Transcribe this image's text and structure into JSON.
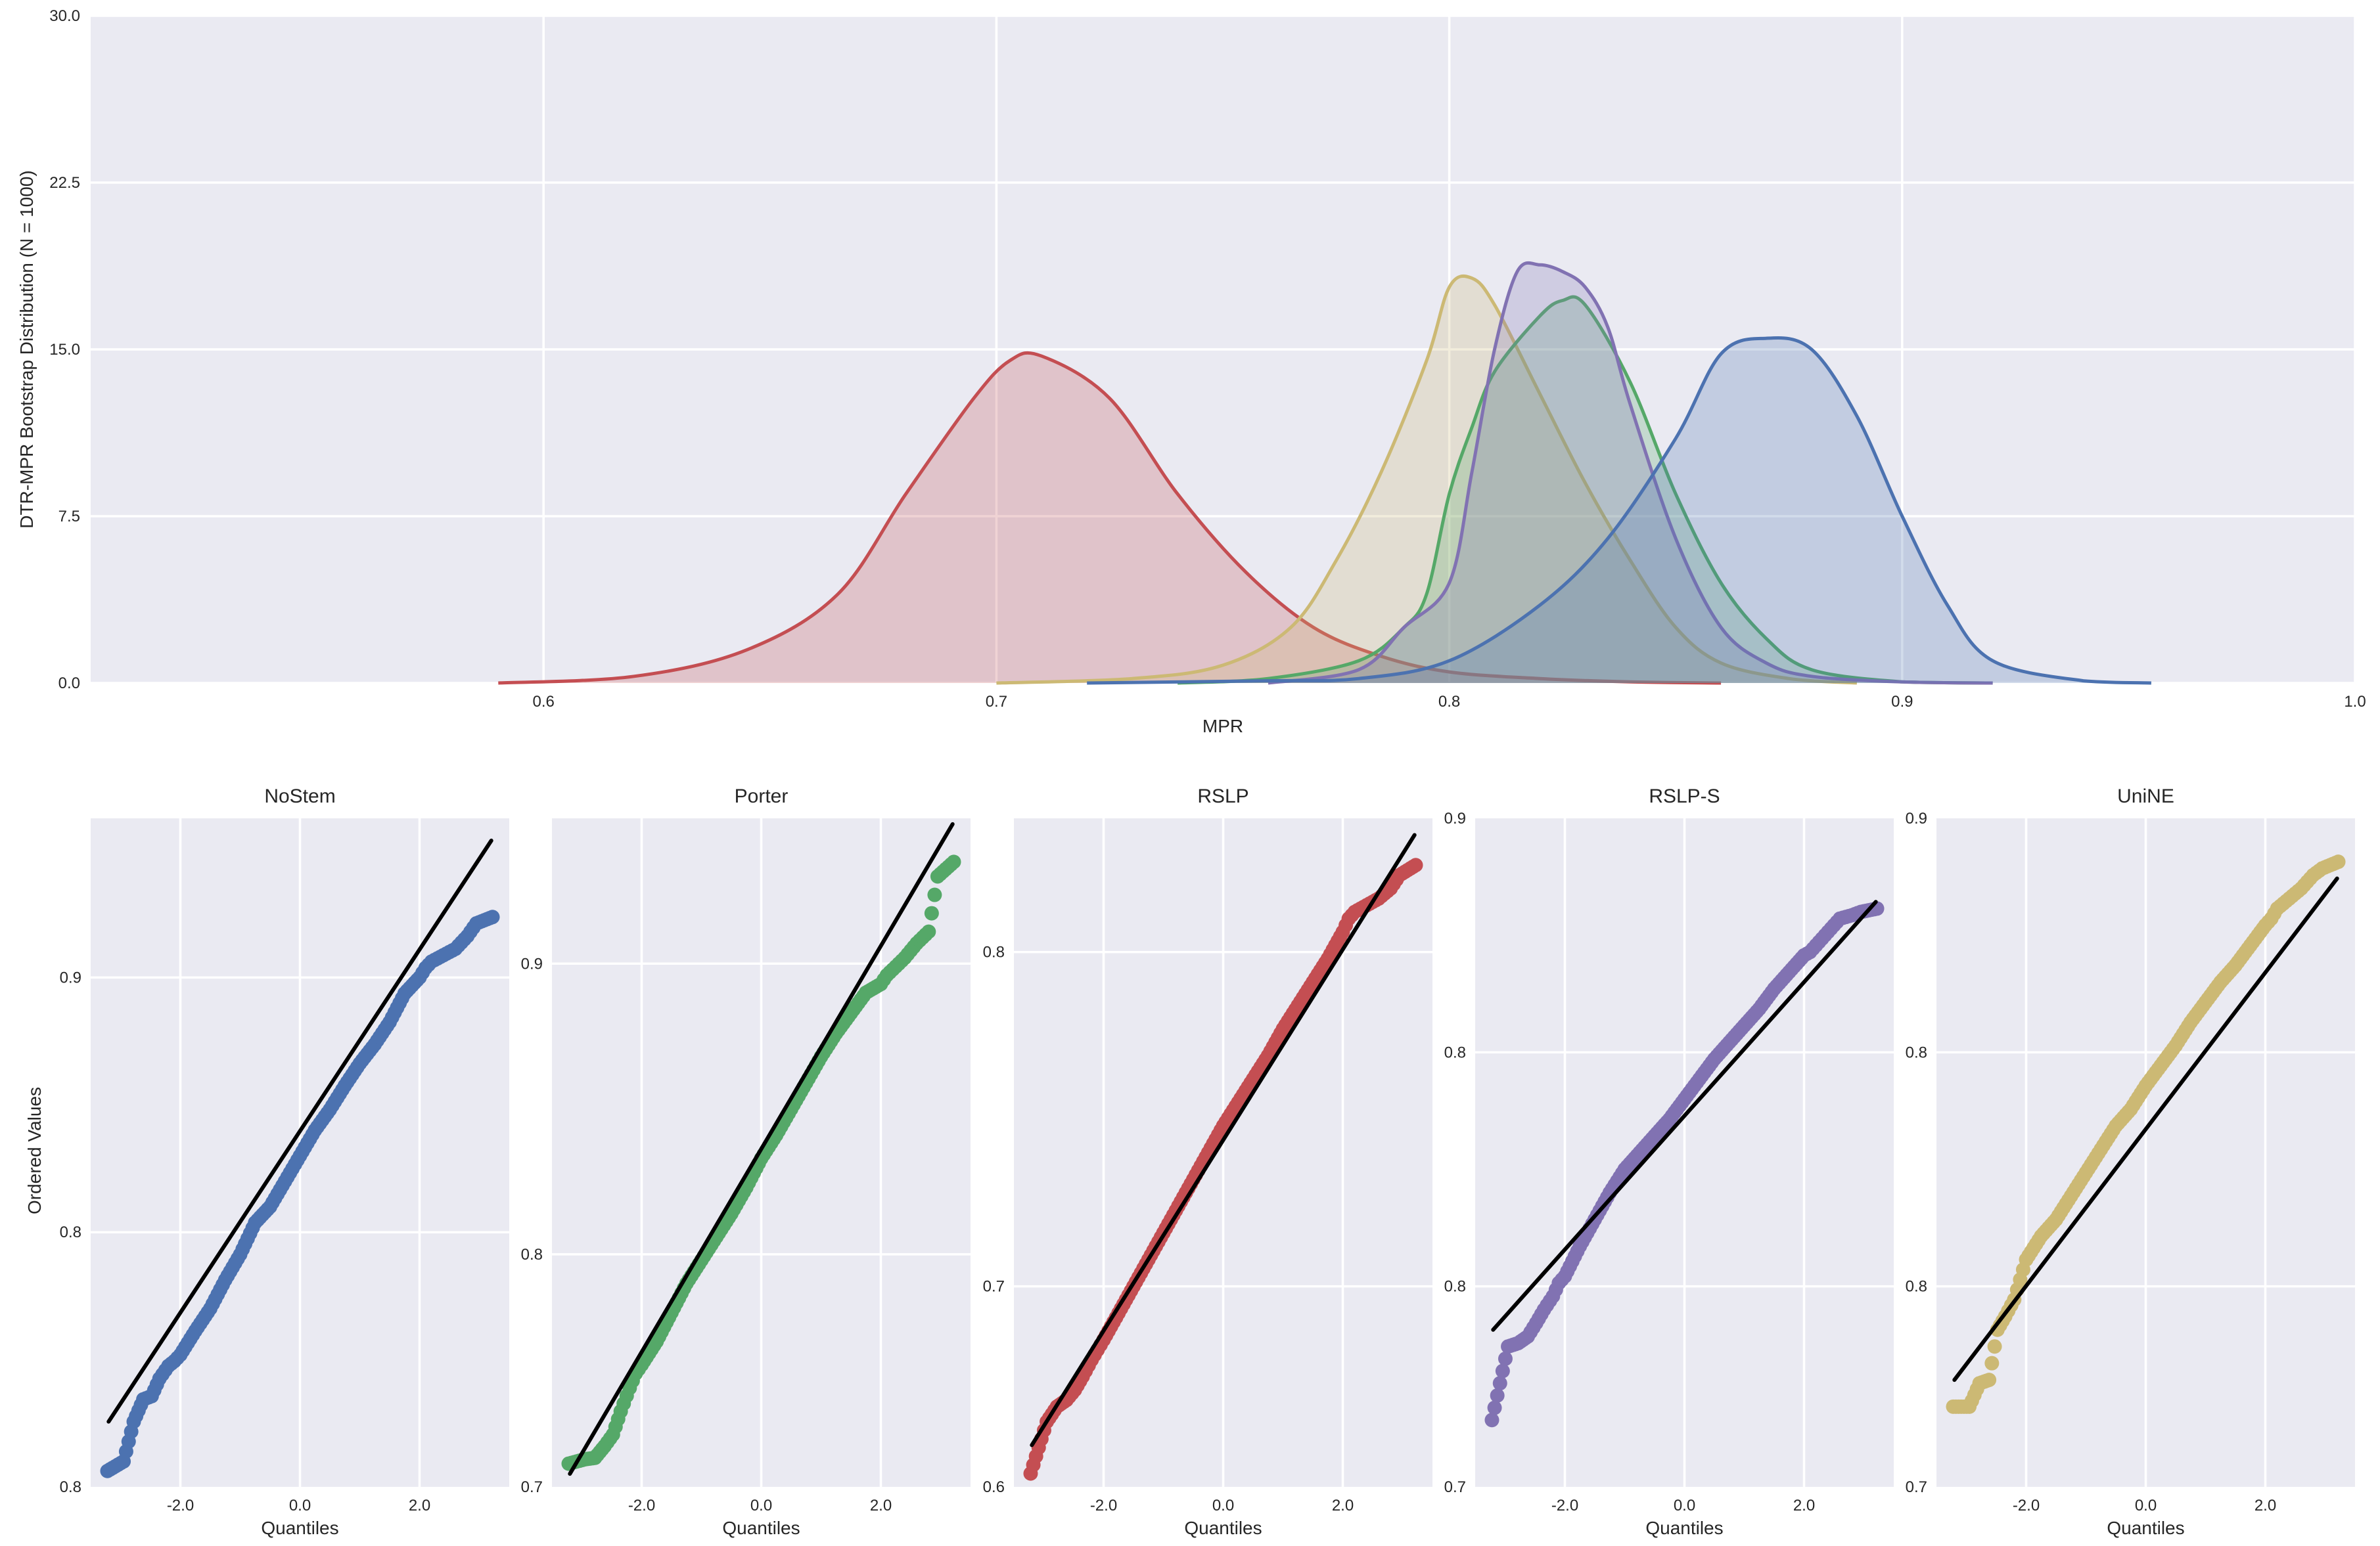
{
  "kde_plot": {
    "xlabel": "MPR",
    "ylabel": "DTR-MPR Bootstrap Distribution (N = 1000)",
    "xlim": [
      0.5,
      1.0
    ],
    "ylim": [
      0,
      30
    ],
    "xticks": [
      "0.6",
      "0.7",
      "0.8",
      "0.9",
      "1.0"
    ],
    "yticks": [
      "0.0",
      "7.5",
      "15.0",
      "22.5",
      "30.0"
    ],
    "grid": true
  },
  "qq_plots": {
    "xlabel": "Quantiles",
    "ylabel": "Ordered Values",
    "xticks": [
      "-2.0",
      "0.0",
      "2.0"
    ],
    "panels": [
      {
        "title": "NoStem",
        "color": "#4c72b0",
        "ylim": [
          0.75,
          0.96
        ],
        "yticks": [
          {
            "label": "0.8",
            "v": 0.75
          },
          {
            "label": "0.8",
            "v": 0.83
          },
          {
            "label": "0.9",
            "v": 0.91
          }
        ]
      },
      {
        "title": "Porter",
        "color": "#55a868",
        "ylim": [
          0.72,
          0.95
        ],
        "yticks": [
          {
            "label": "0.7",
            "v": 0.72
          },
          {
            "label": "0.8",
            "v": 0.8
          },
          {
            "label": "0.9",
            "v": 0.9
          }
        ]
      },
      {
        "title": "RSLP",
        "color": "#c44e52",
        "ylim": [
          0.6,
          0.8
        ],
        "yticks": [
          {
            "label": "0.6",
            "v": 0.6
          },
          {
            "label": "0.7",
            "v": 0.66
          },
          {
            "label": "0.8",
            "v": 0.76
          }
        ]
      },
      {
        "title": "RSLP-S",
        "color": "#8172b2",
        "ylim": [
          0.7,
          0.9
        ],
        "yticks": [
          {
            "label": "0.7",
            "v": 0.7
          },
          {
            "label": "0.8",
            "v": 0.76
          },
          {
            "label": "0.8",
            "v": 0.83
          },
          {
            "label": "0.9",
            "v": 0.9
          }
        ]
      },
      {
        "title": "UniNE",
        "color": "#ccb974",
        "ylim": [
          0.7,
          0.9
        ],
        "yticks": [
          {
            "label": "0.7",
            "v": 0.7
          },
          {
            "label": "0.8",
            "v": 0.76
          },
          {
            "label": "0.8",
            "v": 0.83
          },
          {
            "label": "0.9",
            "v": 0.9
          }
        ]
      }
    ]
  },
  "chart_data": [
    {
      "type": "area",
      "xlabel": "MPR",
      "ylabel": "DTR-MPR Bootstrap Distribution (N = 1000)",
      "xlim": [
        0.5,
        1.0
      ],
      "ylim": [
        0,
        30
      ],
      "grid": true,
      "series": [
        {
          "color": "#c44e52",
          "x": [
            0.59,
            0.62,
            0.645,
            0.665,
            0.68,
            0.695,
            0.703,
            0.71,
            0.725,
            0.74,
            0.755,
            0.77,
            0.785,
            0.8,
            0.82,
            0.84,
            0.86
          ],
          "y": [
            0,
            0.3,
            1.5,
            4.0,
            8.5,
            12.8,
            14.5,
            14.7,
            12.8,
            8.5,
            5.0,
            2.5,
            1.2,
            0.5,
            0.2,
            0.05,
            0
          ]
        },
        {
          "color": "#ccb974",
          "x": [
            0.7,
            0.73,
            0.75,
            0.765,
            0.775,
            0.785,
            0.795,
            0.8,
            0.805,
            0.81,
            0.82,
            0.83,
            0.84,
            0.85,
            0.86,
            0.875,
            0.89
          ],
          "y": [
            0,
            0.2,
            0.8,
            2.5,
            5.5,
            9.5,
            14.5,
            17.8,
            18.2,
            17.0,
            13.0,
            9.0,
            5.5,
            2.5,
            0.9,
            0.2,
            0
          ]
        },
        {
          "color": "#55a868",
          "x": [
            0.74,
            0.76,
            0.78,
            0.79,
            0.795,
            0.8,
            0.805,
            0.81,
            0.82,
            0.825,
            0.83,
            0.84,
            0.85,
            0.86,
            0.87,
            0.88,
            0.9,
            0.92
          ],
          "y": [
            0,
            0.2,
            1.0,
            2.5,
            4.0,
            8.5,
            11.5,
            14.0,
            16.5,
            17.2,
            17.0,
            13.5,
            8.5,
            4.5,
            2.0,
            0.6,
            0.05,
            0
          ]
        },
        {
          "color": "#8172b2",
          "x": [
            0.76,
            0.78,
            0.79,
            0.8,
            0.805,
            0.81,
            0.815,
            0.82,
            0.825,
            0.83,
            0.835,
            0.84,
            0.85,
            0.86,
            0.87,
            0.88,
            0.9,
            0.92
          ],
          "y": [
            0,
            0.6,
            2.5,
            4.5,
            9.5,
            15.0,
            18.5,
            18.8,
            18.5,
            17.8,
            16.0,
            12.5,
            6.5,
            2.5,
            0.9,
            0.3,
            0.05,
            0
          ]
        },
        {
          "color": "#4c72b0",
          "x": [
            0.72,
            0.76,
            0.78,
            0.8,
            0.82,
            0.835,
            0.85,
            0.86,
            0.87,
            0.88,
            0.89,
            0.9,
            0.91,
            0.92,
            0.94,
            0.955
          ],
          "y": [
            0,
            0.1,
            0.2,
            1.0,
            3.5,
            6.5,
            11.0,
            14.8,
            15.5,
            15.0,
            12.0,
            7.5,
            3.5,
            1.0,
            0.1,
            0
          ]
        }
      ]
    },
    {
      "type": "scatter",
      "title": "NoStem",
      "xlabel": "Quantiles",
      "ylabel": "Ordered Values",
      "line": [
        [
          -3.2,
          0.7705
        ],
        [
          3.2,
          0.953
        ]
      ],
      "x": [
        -3.22,
        -2.95,
        -2.78,
        -2.62,
        -2.48,
        -2.35,
        -2.2,
        -2.1,
        -2.0,
        -1.75,
        -1.5,
        -1.25,
        -1.0,
        -0.75,
        -0.5,
        -0.25,
        0.0,
        0.25,
        0.5,
        0.75,
        1.0,
        1.25,
        1.5,
        1.75,
        2.0,
        2.1,
        2.2,
        2.4,
        2.6,
        2.8,
        2.95,
        3.22
      ],
      "y": [
        0.755,
        0.758,
        0.7705,
        0.7775,
        0.7785,
        0.784,
        0.788,
        0.7895,
        0.7915,
        0.799,
        0.806,
        0.815,
        0.823,
        0.833,
        0.838,
        0.846,
        0.854,
        0.862,
        0.8685,
        0.876,
        0.883,
        0.889,
        0.896,
        0.905,
        0.91,
        0.913,
        0.915,
        0.917,
        0.919,
        0.923,
        0.927,
        0.929
      ]
    },
    {
      "type": "scatter",
      "title": "Porter",
      "xlabel": "Quantiles",
      "ylabel": "Ordered Values",
      "line": [
        [
          -3.2,
          0.7245
        ],
        [
          3.2,
          0.948
        ]
      ],
      "x": [
        -3.22,
        -2.95,
        -2.78,
        -2.62,
        -2.48,
        -2.35,
        -2.2,
        -2.1,
        -2.0,
        -1.75,
        -1.5,
        -1.25,
        -1.0,
        -0.75,
        -0.5,
        -0.25,
        0.0,
        0.25,
        0.5,
        0.75,
        1.0,
        1.25,
        1.5,
        1.75,
        2.0,
        2.1,
        2.2,
        2.4,
        2.6,
        2.8,
        2.95,
        3.22
      ],
      "y": [
        0.728,
        0.7295,
        0.73,
        0.734,
        0.738,
        0.746,
        0.754,
        0.759,
        0.762,
        0.77,
        0.78,
        0.79,
        0.798,
        0.806,
        0.814,
        0.823,
        0.833,
        0.841,
        0.85,
        0.859,
        0.868,
        0.876,
        0.883,
        0.89,
        0.893,
        0.896,
        0.898,
        0.902,
        0.907,
        0.911,
        0.93,
        0.935
      ]
    },
    {
      "type": "scatter",
      "title": "RSLP",
      "xlabel": "Quantiles",
      "ylabel": "Ordered Values",
      "line": [
        [
          -3.2,
          0.6125
        ],
        [
          3.2,
          0.795
        ]
      ],
      "x": [
        -3.22,
        -2.95,
        -2.78,
        -2.62,
        -2.48,
        -2.35,
        -2.2,
        -2.1,
        -2.0,
        -1.75,
        -1.5,
        -1.25,
        -1.0,
        -0.75,
        -0.5,
        -0.25,
        0.0,
        0.25,
        0.5,
        0.75,
        1.0,
        1.25,
        1.5,
        1.75,
        2.0,
        2.1,
        2.2,
        2.4,
        2.6,
        2.8,
        2.95,
        3.22
      ],
      "y": [
        0.604,
        0.6195,
        0.624,
        0.626,
        0.629,
        0.633,
        0.638,
        0.641,
        0.644,
        0.652,
        0.66,
        0.668,
        0.676,
        0.684,
        0.692,
        0.7,
        0.708,
        0.715,
        0.722,
        0.729,
        0.737,
        0.744,
        0.751,
        0.758,
        0.766,
        0.77,
        0.772,
        0.774,
        0.776,
        0.779,
        0.783,
        0.786
      ]
    },
    {
      "type": "scatter",
      "title": "RSLP-S",
      "xlabel": "Quantiles",
      "ylabel": "Ordered Values",
      "line": [
        [
          -3.2,
          0.747
        ],
        [
          3.2,
          0.875
        ]
      ],
      "x": [
        -3.22,
        -2.95,
        -2.78,
        -2.62,
        -2.48,
        -2.35,
        -2.2,
        -2.1,
        -2.0,
        -1.75,
        -1.5,
        -1.25,
        -1.0,
        -0.75,
        -0.5,
        -0.25,
        0.0,
        0.25,
        0.5,
        0.75,
        1.0,
        1.25,
        1.5,
        1.75,
        2.0,
        2.1,
        2.2,
        2.4,
        2.6,
        2.8,
        2.95,
        3.22
      ],
      "y": [
        0.72,
        0.742,
        0.743,
        0.745,
        0.749,
        0.753,
        0.757,
        0.761,
        0.763,
        0.772,
        0.78,
        0.788,
        0.795,
        0.8,
        0.805,
        0.81,
        0.816,
        0.822,
        0.828,
        0.833,
        0.838,
        0.843,
        0.849,
        0.854,
        0.859,
        0.86,
        0.862,
        0.866,
        0.87,
        0.871,
        0.872,
        0.873
      ]
    },
    {
      "type": "scatter",
      "title": "UniNE",
      "xlabel": "Quantiles",
      "ylabel": "Ordered Values",
      "line": [
        [
          -3.2,
          0.732
        ],
        [
          3.2,
          0.882
        ]
      ],
      "x": [
        -3.22,
        -2.95,
        -2.78,
        -2.62,
        -2.48,
        -2.35,
        -2.2,
        -2.1,
        -2.0,
        -1.75,
        -1.5,
        -1.25,
        -1.0,
        -0.75,
        -0.5,
        -0.25,
        0.0,
        0.25,
        0.5,
        0.75,
        1.0,
        1.25,
        1.5,
        1.75,
        2.0,
        2.1,
        2.2,
        2.4,
        2.6,
        2.8,
        2.95,
        3.22
      ],
      "y": [
        0.724,
        0.724,
        0.731,
        0.732,
        0.747,
        0.751,
        0.756,
        0.762,
        0.768,
        0.775,
        0.78,
        0.787,
        0.794,
        0.801,
        0.808,
        0.813,
        0.82,
        0.826,
        0.832,
        0.839,
        0.845,
        0.851,
        0.856,
        0.862,
        0.868,
        0.87,
        0.873,
        0.876,
        0.879,
        0.883,
        0.885,
        0.887
      ]
    }
  ]
}
